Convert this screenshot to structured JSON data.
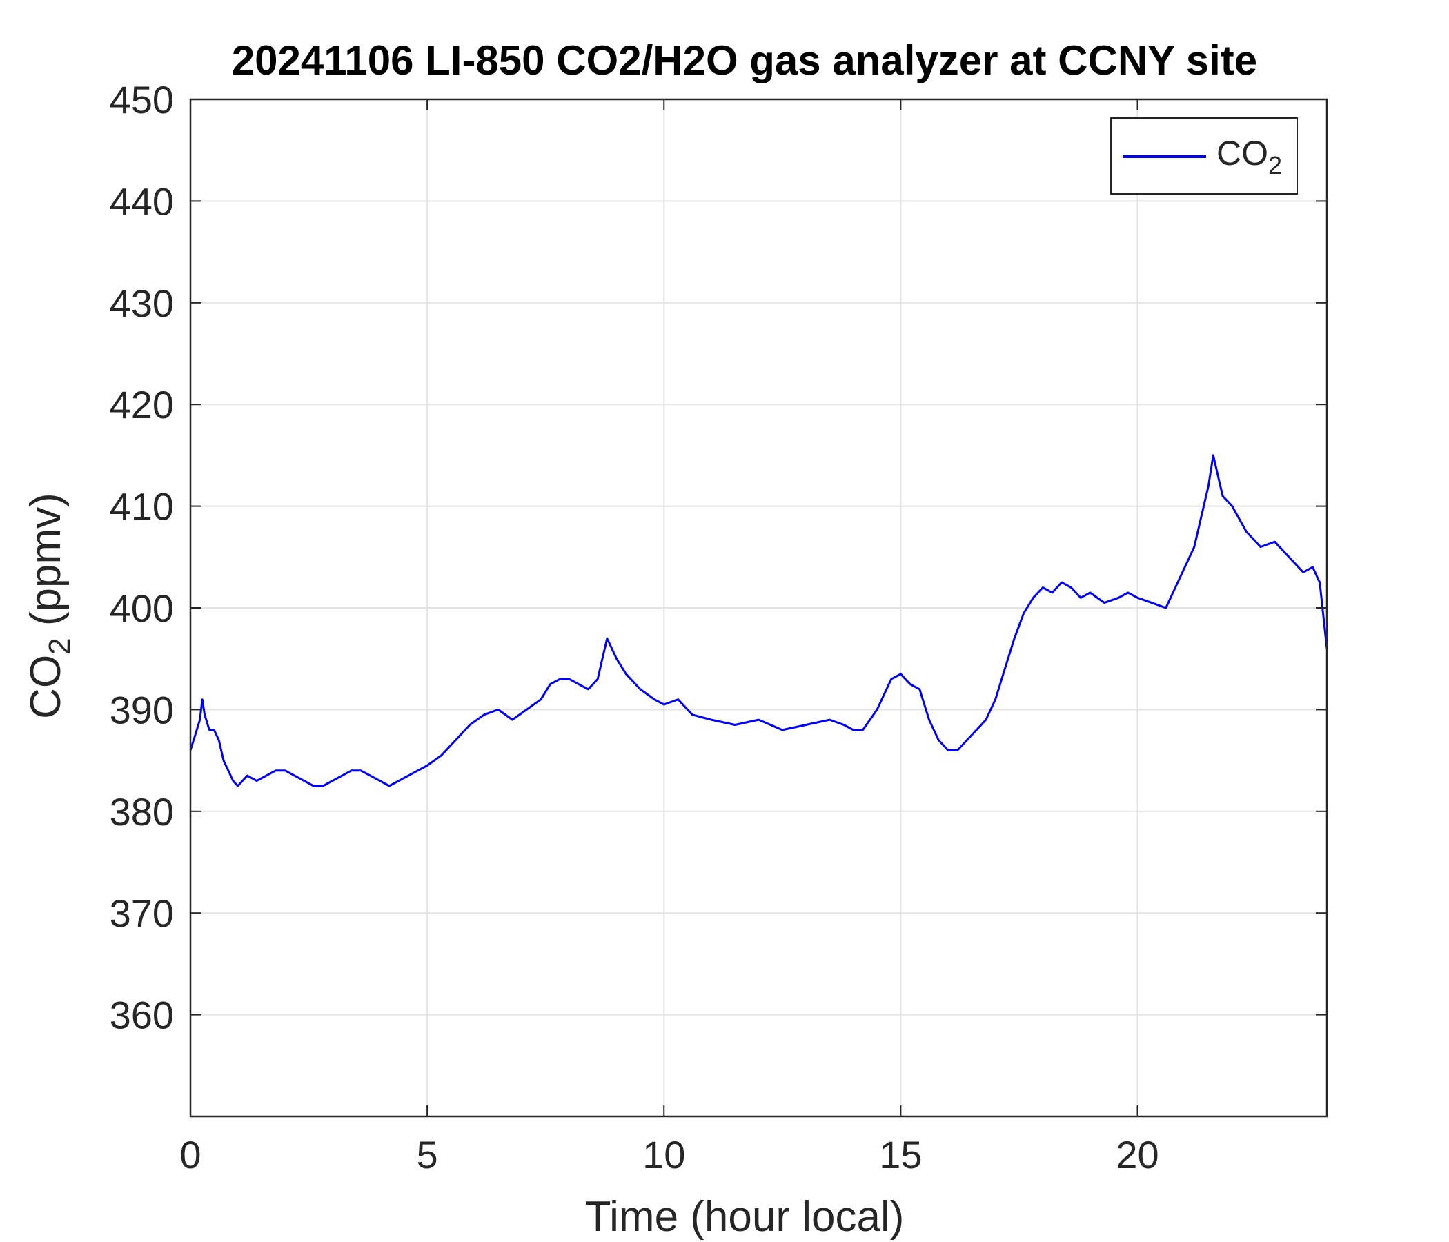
{
  "chart_data": {
    "type": "line",
    "title": "20241106 LI-850 CO2/H2O gas analyzer at CCNY site",
    "xlabel": "Time (hour local)",
    "ylabel": {
      "main": "CO",
      "sub": "2",
      "suffix": " (ppmv)"
    },
    "xlim": [
      0,
      24
    ],
    "ylim": [
      350,
      450
    ],
    "xticks": [
      0,
      5,
      10,
      15,
      20
    ],
    "yticks": [
      360,
      370,
      380,
      390,
      400,
      410,
      420,
      430,
      440,
      450
    ],
    "grid": true,
    "legend": {
      "position": "top-right",
      "entries": [
        {
          "main": "CO",
          "sub": "2"
        }
      ]
    },
    "colors": {
      "series": "#0000ff",
      "grid": "#e3e3e3",
      "axis": "#262626"
    },
    "series": [
      {
        "name": "CO2",
        "x": [
          0,
          0.1,
          0.2,
          0.25,
          0.3,
          0.4,
          0.5,
          0.6,
          0.7,
          0.8,
          0.9,
          1.0,
          1.1,
          1.2,
          1.4,
          1.6,
          1.8,
          2.0,
          2.2,
          2.4,
          2.6,
          2.8,
          3.0,
          3.2,
          3.4,
          3.6,
          3.8,
          4.0,
          4.2,
          4.4,
          4.6,
          4.8,
          5.0,
          5.3,
          5.6,
          5.9,
          6.2,
          6.5,
          6.8,
          7.1,
          7.4,
          7.6,
          7.8,
          8.0,
          8.2,
          8.4,
          8.6,
          8.7,
          8.8,
          9.0,
          9.2,
          9.5,
          9.8,
          10.0,
          10.3,
          10.6,
          11.0,
          11.5,
          12.0,
          12.5,
          13.0,
          13.5,
          13.8,
          14.0,
          14.2,
          14.5,
          14.8,
          15.0,
          15.2,
          15.4,
          15.6,
          15.8,
          16.0,
          16.2,
          16.4,
          16.6,
          16.8,
          17.0,
          17.2,
          17.4,
          17.6,
          17.8,
          18.0,
          18.2,
          18.4,
          18.6,
          18.8,
          19.0,
          19.3,
          19.6,
          19.8,
          20.0,
          20.3,
          20.6,
          20.9,
          21.2,
          21.5,
          21.6,
          21.8,
          22.0,
          22.3,
          22.6,
          22.9,
          23.2,
          23.5,
          23.7,
          23.85,
          24.0
        ],
        "y": [
          386,
          387.5,
          389,
          391,
          389.5,
          388,
          388,
          387,
          385,
          384,
          383,
          382.5,
          383,
          383.5,
          383,
          383.5,
          384,
          384,
          383.5,
          383,
          382.5,
          382.5,
          383,
          383.5,
          384,
          384,
          383.5,
          383,
          382.5,
          383,
          383.5,
          384,
          384.5,
          385.5,
          387,
          388.5,
          389.5,
          390,
          389,
          390,
          391,
          392.5,
          393,
          393,
          392.5,
          392,
          393,
          395,
          397,
          395,
          393.5,
          392,
          391,
          390.5,
          391,
          389.5,
          389,
          388.5,
          389,
          388,
          388.5,
          389,
          388.5,
          388,
          388,
          390,
          393,
          393.5,
          392.5,
          392,
          389,
          387,
          386,
          386,
          387,
          388,
          389,
          391,
          394,
          397,
          399.5,
          401,
          402,
          401.5,
          402.5,
          402,
          401,
          401.5,
          400.5,
          401,
          401.5,
          401,
          400.5,
          400,
          403,
          406,
          412,
          415,
          411,
          410,
          407.5,
          406,
          406.5,
          405,
          403.5,
          404,
          402.5,
          396
        ]
      }
    ]
  }
}
